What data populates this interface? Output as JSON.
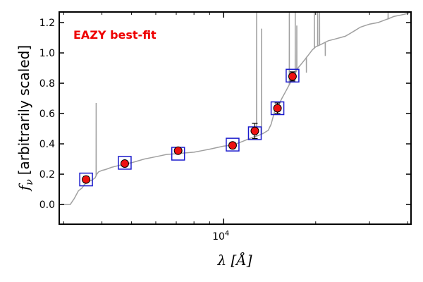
{
  "chart_data": {
    "type": "scatter",
    "xscale": "log",
    "xlim": [
      2900,
      41000
    ],
    "ylim": [
      -0.13,
      1.27
    ],
    "xlabel": "λ [Å]",
    "ylabel": "f_ν [arbitrarily scaled]",
    "ylabel_symbol": "f",
    "ylabel_sub": "ν",
    "ylabel_text": "[arbitrarily scaled]",
    "xticks": [
      {
        "value": 10000,
        "base": "10",
        "exp": "4"
      }
    ],
    "yticks": [
      "0.0",
      "0.2",
      "0.4",
      "0.6",
      "0.8",
      "1.0",
      "1.2"
    ],
    "annotation": "EAZY best-fit",
    "colors": {
      "annotation": "#ee0000",
      "photometry": "#ee1111",
      "model_boxes": "#1a1acc",
      "template": "#a0a0a0"
    },
    "photometry": [
      {
        "x": 3550,
        "y": 0.165,
        "err": 0.02
      },
      {
        "x": 4750,
        "y": 0.27,
        "err": 0.015
      },
      {
        "x": 7100,
        "y": 0.355,
        "err": 0.015
      },
      {
        "x": 10700,
        "y": 0.39,
        "err": 0.02
      },
      {
        "x": 12650,
        "y": 0.485,
        "err": 0.05
      },
      {
        "x": 15000,
        "y": 0.635,
        "err": 0.035
      },
      {
        "x": 16800,
        "y": 0.845,
        "err": 0.03
      }
    ],
    "model_fluxes": [
      {
        "x": 3550,
        "y": 0.165
      },
      {
        "x": 4750,
        "y": 0.275
      },
      {
        "x": 7100,
        "y": 0.335
      },
      {
        "x": 10700,
        "y": 0.395
      },
      {
        "x": 12650,
        "y": 0.47
      },
      {
        "x": 15000,
        "y": 0.635
      },
      {
        "x": 16800,
        "y": 0.85
      }
    ],
    "template_sed": [
      [
        2900,
        0.0
      ],
      [
        3150,
        0.0
      ],
      [
        3250,
        0.04
      ],
      [
        3350,
        0.09
      ],
      [
        3450,
        0.11
      ],
      [
        3500,
        0.13
      ],
      [
        3600,
        0.15
      ],
      [
        3700,
        0.16
      ],
      [
        3800,
        0.175
      ],
      [
        3850,
        0.2
      ],
      [
        3900,
        0.215
      ],
      [
        4000,
        0.225
      ],
      [
        4100,
        0.23
      ],
      [
        4300,
        0.245
      ],
      [
        4500,
        0.255
      ],
      [
        4800,
        0.27
      ],
      [
        5000,
        0.275
      ],
      [
        5500,
        0.3
      ],
      [
        6000,
        0.315
      ],
      [
        6500,
        0.33
      ],
      [
        7000,
        0.335
      ],
      [
        7500,
        0.34
      ],
      [
        8000,
        0.345
      ],
      [
        8500,
        0.355
      ],
      [
        9000,
        0.365
      ],
      [
        9500,
        0.375
      ],
      [
        10000,
        0.385
      ],
      [
        10500,
        0.39
      ],
      [
        11000,
        0.4
      ],
      [
        11500,
        0.415
      ],
      [
        12000,
        0.43
      ],
      [
        12500,
        0.445
      ],
      [
        13000,
        0.455
      ],
      [
        13500,
        0.47
      ],
      [
        14000,
        0.49
      ],
      [
        14300,
        0.53
      ],
      [
        14700,
        0.62
      ],
      [
        15000,
        0.64
      ],
      [
        15500,
        0.7
      ],
      [
        16000,
        0.75
      ],
      [
        16500,
        0.8
      ],
      [
        17000,
        0.85
      ],
      [
        17500,
        0.9
      ],
      [
        18000,
        0.93
      ],
      [
        18500,
        0.96
      ],
      [
        19000,
        0.99
      ],
      [
        19500,
        1.02
      ],
      [
        20000,
        1.04
      ],
      [
        21000,
        1.06
      ],
      [
        22000,
        1.08
      ],
      [
        23000,
        1.09
      ],
      [
        24000,
        1.1
      ],
      [
        25000,
        1.11
      ],
      [
        26000,
        1.13
      ],
      [
        27000,
        1.15
      ],
      [
        28000,
        1.17
      ],
      [
        29000,
        1.18
      ],
      [
        30000,
        1.19
      ],
      [
        32000,
        1.2
      ],
      [
        34000,
        1.22
      ],
      [
        36000,
        1.24
      ],
      [
        38000,
        1.25
      ],
      [
        40000,
        1.26
      ],
      [
        41000,
        1.27
      ]
    ],
    "template_lines": [
      {
        "x": 3830,
        "peak": 0.67
      },
      {
        "x": 12820,
        "peak": 1.27
      },
      {
        "x": 13300,
        "peak": 1.16
      },
      {
        "x": 16400,
        "peak": 1.27
      },
      {
        "x": 17150,
        "peak": 1.27
      },
      {
        "x": 17350,
        "peak": 1.18
      },
      {
        "x": 19800,
        "peak": 1.27
      },
      {
        "x": 20300,
        "peak": 1.27
      },
      {
        "x": 20600,
        "peak": 1.27
      },
      {
        "x": 34500,
        "peak": 1.27
      }
    ],
    "template_dips": [
      {
        "x": 18650,
        "trough": 0.87
      },
      {
        "x": 21500,
        "trough": 0.98
      }
    ]
  }
}
